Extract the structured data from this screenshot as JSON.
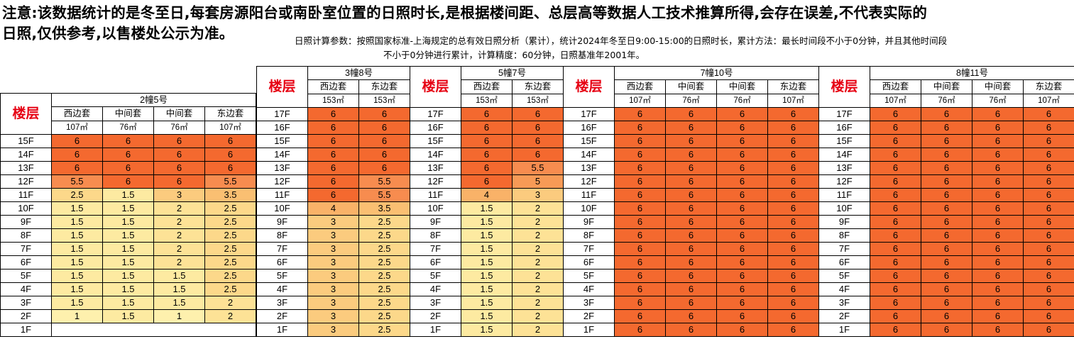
{
  "notice": {
    "line1": "注意:该数据统计的是冬至日,每套房源阳台或南卧室位置的日照时长,是根据楼间距、总层高等数据人工技术推算所得,会存在误差,不代表实际的",
    "line2": "日照,仅供参考,以售楼处公示为准。"
  },
  "params": {
    "line1": "日照计算参数：按照国家标准-上海规定的总有效日照分析（累计），统计2024年冬至日9:00-15:00的日照时长，累计方法：最长时间段不小于0分钟，并且其他时间段",
    "line2": "不小于0分钟进行累计，计算精度：60分钟，日照基准年2001年。"
  },
  "floor_header": "楼层",
  "colors": {
    "6": "#f4692f",
    "5.5": "#f78c4f",
    "5": "#f79a56",
    "4": "#f9b268",
    "3.5": "#fabf72",
    "3": "#fbcb7e",
    "2.5": "#fcd88a",
    "2": "#fde296",
    "1.5": "#fdeaa1",
    "1": "#fef0ad"
  },
  "buildings": [
    {
      "name": "2幢5号",
      "units": [
        "西边套",
        "中间套",
        "中间套",
        "东边套"
      ],
      "areas": [
        "107㎡",
        "76㎡",
        "76㎡",
        "107㎡"
      ],
      "floors": [
        "15F",
        "14F",
        "13F",
        "12F",
        "11F",
        "10F",
        "9F",
        "8F",
        "7F",
        "6F",
        "5F",
        "4F",
        "3F",
        "2F",
        "1F"
      ],
      "rows": [
        [
          "6",
          "6",
          "6",
          "6"
        ],
        [
          "6",
          "6",
          "6",
          "6"
        ],
        [
          "6",
          "6",
          "6",
          "6"
        ],
        [
          "5.5",
          "6",
          "6",
          "5.5"
        ],
        [
          "2.5",
          "1.5",
          "3",
          "3.5"
        ],
        [
          "1.5",
          "1.5",
          "2",
          "2.5"
        ],
        [
          "1.5",
          "1.5",
          "2",
          "2.5"
        ],
        [
          "1.5",
          "1.5",
          "2",
          "2.5"
        ],
        [
          "1.5",
          "1.5",
          "2",
          "2.5"
        ],
        [
          "1.5",
          "1.5",
          "2",
          "2.5"
        ],
        [
          "1.5",
          "1.5",
          "1.5",
          "2.5"
        ],
        [
          "1.5",
          "1.5",
          "1.5",
          "2.5"
        ],
        [
          "1.5",
          "1.5",
          "1.5",
          "2"
        ],
        [
          "1",
          "1.5",
          "1",
          "2"
        ],
        [
          "",
          "",
          "",
          ""
        ]
      ]
    },
    {
      "name": "3幢8号",
      "units": [
        "西边套",
        "东边套"
      ],
      "areas": [
        "153㎡",
        "153㎡"
      ],
      "floors": [
        "17F",
        "16F",
        "15F",
        "14F",
        "13F",
        "12F",
        "11F",
        "10F",
        "9F",
        "8F",
        "7F",
        "6F",
        "5F",
        "4F",
        "3F",
        "2F",
        "1F"
      ],
      "rows": [
        [
          "6",
          "6"
        ],
        [
          "6",
          "6"
        ],
        [
          "6",
          "6"
        ],
        [
          "6",
          "6"
        ],
        [
          "6",
          "6"
        ],
        [
          "6",
          "5.5"
        ],
        [
          "6",
          "5.5"
        ],
        [
          "4",
          "3.5"
        ],
        [
          "3",
          "2.5"
        ],
        [
          "3",
          "2.5"
        ],
        [
          "3",
          "2.5"
        ],
        [
          "3",
          "2.5"
        ],
        [
          "3",
          "2.5"
        ],
        [
          "3",
          "2.5"
        ],
        [
          "3",
          "2.5"
        ],
        [
          "3",
          "2.5"
        ],
        [
          "3",
          "2.5"
        ]
      ]
    },
    {
      "name": "5幢7号",
      "units": [
        "西边套",
        "东边套"
      ],
      "areas": [
        "153㎡",
        "153㎡"
      ],
      "floors": [
        "17F",
        "16F",
        "15F",
        "14F",
        "13F",
        "12F",
        "11F",
        "10F",
        "9F",
        "8F",
        "7F",
        "6F",
        "5F",
        "4F",
        "3F",
        "2F",
        "1F"
      ],
      "rows": [
        [
          "6",
          "6"
        ],
        [
          "6",
          "6"
        ],
        [
          "6",
          "6"
        ],
        [
          "6",
          "6"
        ],
        [
          "6",
          "5.5"
        ],
        [
          "6",
          "5"
        ],
        [
          "4",
          "3"
        ],
        [
          "1.5",
          "2"
        ],
        [
          "1.5",
          "2"
        ],
        [
          "1.5",
          "2"
        ],
        [
          "1.5",
          "2"
        ],
        [
          "1.5",
          "2"
        ],
        [
          "1.5",
          "2"
        ],
        [
          "1.5",
          "2"
        ],
        [
          "1.5",
          "2"
        ],
        [
          "1.5",
          "2"
        ],
        [
          "1.5",
          "2"
        ]
      ]
    },
    {
      "name": "7幢10号",
      "units": [
        "西边套",
        "中间套",
        "中间套",
        "东边套"
      ],
      "areas": [
        "107㎡",
        "76㎡",
        "76㎡",
        "107㎡"
      ],
      "floors": [
        "17F",
        "16F",
        "15F",
        "14F",
        "13F",
        "12F",
        "11F",
        "10F",
        "9F",
        "8F",
        "7F",
        "6F",
        "5F",
        "4F",
        "3F",
        "2F",
        "1F"
      ],
      "rows": [
        [
          "6",
          "6",
          "6",
          "6"
        ],
        [
          "6",
          "6",
          "6",
          "6"
        ],
        [
          "6",
          "6",
          "6",
          "6"
        ],
        [
          "6",
          "6",
          "6",
          "6"
        ],
        [
          "6",
          "6",
          "6",
          "6"
        ],
        [
          "6",
          "6",
          "6",
          "6"
        ],
        [
          "6",
          "6",
          "6",
          "6"
        ],
        [
          "6",
          "6",
          "6",
          "6"
        ],
        [
          "6",
          "6",
          "6",
          "6"
        ],
        [
          "6",
          "6",
          "6",
          "6"
        ],
        [
          "6",
          "6",
          "6",
          "6"
        ],
        [
          "6",
          "6",
          "6",
          "6"
        ],
        [
          "6",
          "6",
          "6",
          "6"
        ],
        [
          "6",
          "6",
          "6",
          "6"
        ],
        [
          "6",
          "6",
          "6",
          "6"
        ],
        [
          "6",
          "6",
          "6",
          "6"
        ],
        [
          "6",
          "6",
          "6",
          "6"
        ]
      ]
    },
    {
      "name": "8幢11号",
      "units": [
        "西边套",
        "中间套",
        "中间套",
        "东边套"
      ],
      "areas": [
        "107㎡",
        "76㎡",
        "76㎡",
        "107㎡"
      ],
      "floors": [
        "17F",
        "16F",
        "15F",
        "14F",
        "13F",
        "12F",
        "11F",
        "10F",
        "9F",
        "8F",
        "7F",
        "6F",
        "5F",
        "4F",
        "3F",
        "2F",
        "1F"
      ],
      "rows": [
        [
          "6",
          "6",
          "6",
          "6"
        ],
        [
          "6",
          "6",
          "6",
          "6"
        ],
        [
          "6",
          "6",
          "6",
          "6"
        ],
        [
          "6",
          "6",
          "6",
          "6"
        ],
        [
          "6",
          "6",
          "6",
          "6"
        ],
        [
          "6",
          "6",
          "6",
          "6"
        ],
        [
          "6",
          "6",
          "6",
          "6"
        ],
        [
          "6",
          "6",
          "6",
          "6"
        ],
        [
          "6",
          "6",
          "6",
          "6"
        ],
        [
          "6",
          "6",
          "6",
          "6"
        ],
        [
          "6",
          "6",
          "6",
          "6"
        ],
        [
          "6",
          "6",
          "6",
          "6"
        ],
        [
          "6",
          "6",
          "6",
          "6"
        ],
        [
          "6",
          "6",
          "6",
          "6"
        ],
        [
          "6",
          "6",
          "6",
          "6"
        ],
        [
          "6",
          "6",
          "6",
          "6"
        ],
        [
          "6",
          "6",
          "6",
          "6"
        ]
      ]
    }
  ]
}
